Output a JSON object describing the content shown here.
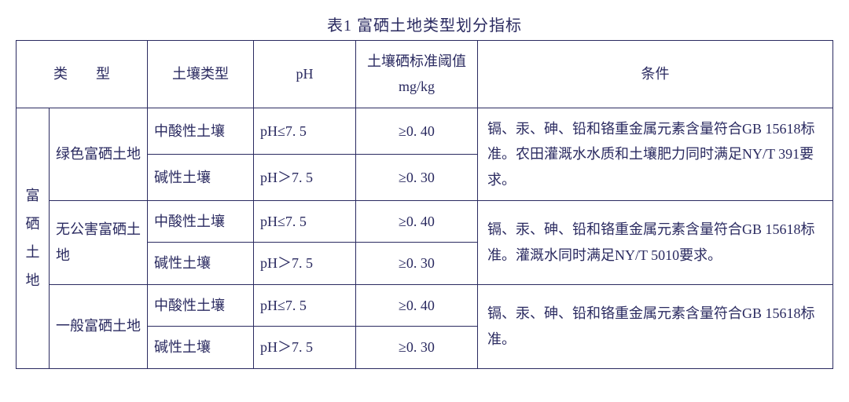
{
  "title": "表1  富硒土地类型划分指标",
  "columns": {
    "type": "类　　型",
    "soil": "土壤类型",
    "ph": "pH",
    "threshold_line1": "土壤硒标准阈值",
    "threshold_line2": "mg/kg",
    "condition": "条件"
  },
  "main_type": "富硒土地",
  "subtypes": {
    "green": "绿色富硒土地",
    "pollution_free": "无公害富硒土地",
    "general": "一般富硒土地"
  },
  "soil": {
    "acidic": "中酸性土壤",
    "alkaline": "碱性土壤"
  },
  "ph": {
    "le": "pH≤7. 5",
    "gt": "pH＞7. 5"
  },
  "threshold": {
    "v40": "≥0. 40",
    "v30": "≥0. 30"
  },
  "conditions": {
    "green": "镉、汞、砷、铅和铬重金属元素含量符合GB 15618标准。农田灌溉水水质和土壤肥力同时满足NY/T 391要求。",
    "pollution_free": "镉、汞、砷、铅和铬重金属元素含量符合GB 15618标准。灌溉水同时满足NY/T 5010要求。",
    "general": "镉、汞、砷、铅和铬重金属元素含量符合GB 15618标准。"
  },
  "colwidths": {
    "c1": "42px",
    "c2": "125px",
    "c3": "135px",
    "c4": "130px",
    "c5": "155px",
    "c6": "auto"
  }
}
